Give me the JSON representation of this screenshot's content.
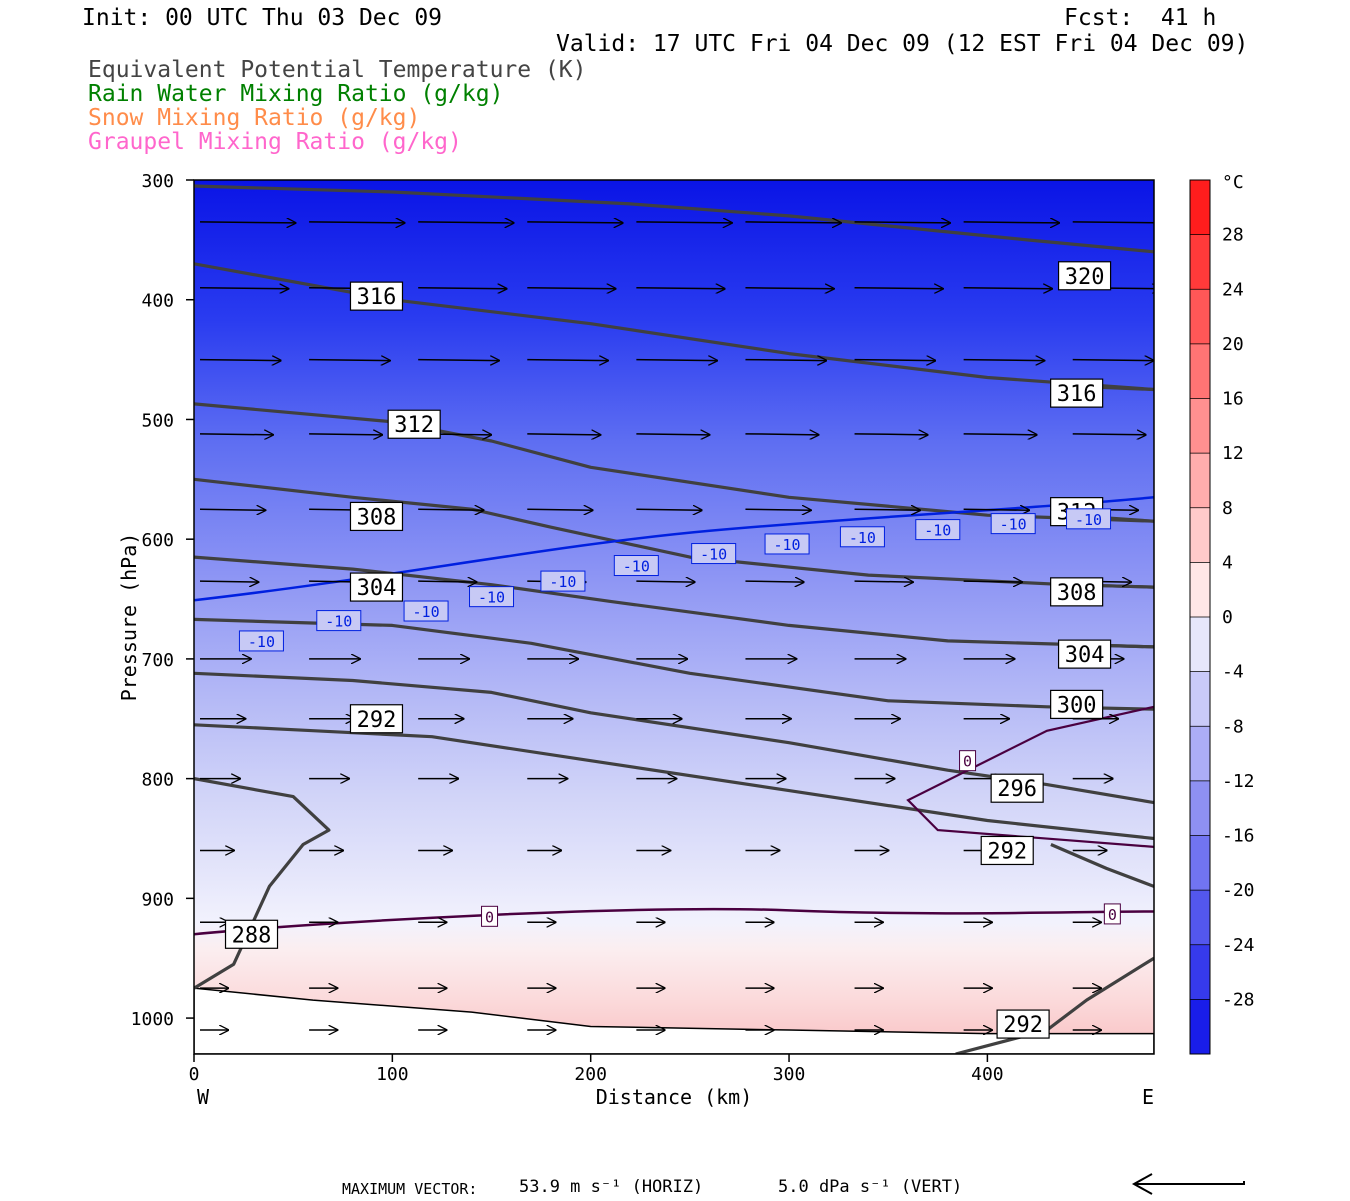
{
  "header": {
    "init": "Init: 00 UTC Thu 03 Dec 09",
    "fcst": "Fcst:  41 h",
    "valid": "Valid: 17 UTC Fri 04 Dec 09 (12 EST Fri 04 Dec 09)"
  },
  "legend": [
    {
      "label": "Equivalent Potential Temperature (K)",
      "color": "#444444"
    },
    {
      "label": "Rain Water Mixing Ratio (g/kg)",
      "color": "#008000"
    },
    {
      "label": "Snow Mixing Ratio (g/kg)",
      "color": "#ff8c4a"
    },
    {
      "label": "Graupel Mixing Ratio (g/kg)",
      "color": "#ff66cc"
    }
  ],
  "footer": {
    "max_vector_label": "MAXIMUM VECTOR:",
    "horiz": "53.9 m s⁻¹ (HORIZ)",
    "vert": "5.0 dPa s⁻¹ (VERT)"
  },
  "chart_data": {
    "type": "cross-section",
    "xlabel": "Distance (km)",
    "ylabel": "Pressure (hPa)",
    "x_range": [
      0,
      484
    ],
    "y_range": [
      1030,
      300
    ],
    "x_ticks": [
      0,
      100,
      200,
      300,
      400
    ],
    "y_ticks": [
      300,
      400,
      500,
      600,
      700,
      800,
      900,
      1000
    ],
    "x_end_labels": {
      "left": "W",
      "right": "E"
    },
    "temperature_colorbar": {
      "unit": "°C",
      "min": -32,
      "max": 32,
      "step": 4,
      "tick_labels": [
        28,
        24,
        20,
        16,
        12,
        8,
        4,
        0,
        -4,
        -8,
        -12,
        -16,
        -20,
        -24,
        -28
      ]
    },
    "theta_e_contours": [
      {
        "value": 288,
        "points": [
          [
            0,
            975
          ],
          [
            20,
            955
          ],
          [
            38,
            890
          ],
          [
            55,
            855
          ],
          [
            68,
            843
          ],
          [
            50,
            815
          ],
          [
            0,
            800
          ]
        ],
        "label_at": [
          29,
          930
        ]
      },
      {
        "value": 292,
        "points": [
          [
            0,
            755
          ],
          [
            60,
            760
          ],
          [
            120,
            765
          ],
          [
            200,
            785
          ],
          [
            300,
            810
          ],
          [
            400,
            835
          ],
          [
            484,
            850
          ]
        ],
        "label_at": [
          92,
          750
        ]
      },
      {
        "value": 292,
        "points": [
          [
            432,
            855
          ],
          [
            460,
            875
          ],
          [
            484,
            890
          ]
        ],
        "label_at": [
          410,
          860
        ]
      },
      {
        "value": 292,
        "points": [
          [
            384,
            1030
          ],
          [
            430,
            1010
          ],
          [
            450,
            985
          ],
          [
            484,
            950
          ]
        ],
        "label_at": [
          418,
          1005
        ]
      },
      {
        "value": 296,
        "points": [
          [
            0,
            712
          ],
          [
            80,
            718
          ],
          [
            150,
            728
          ],
          [
            200,
            745
          ],
          [
            300,
            770
          ],
          [
            380,
            793
          ],
          [
            430,
            805
          ],
          [
            484,
            820
          ]
        ],
        "label_at": [
          415,
          808
        ]
      },
      {
        "value": 300,
        "points": [
          [
            0,
            667
          ],
          [
            100,
            672
          ],
          [
            170,
            687
          ],
          [
            250,
            712
          ],
          [
            350,
            735
          ],
          [
            430,
            740
          ],
          [
            484,
            742
          ]
        ],
        "label_at": [
          445,
          738
        ]
      },
      {
        "value": 304,
        "points": [
          [
            0,
            615
          ],
          [
            80,
            625
          ],
          [
            150,
            638
          ],
          [
            210,
            652
          ],
          [
            300,
            672
          ],
          [
            380,
            685
          ],
          [
            484,
            690
          ]
        ],
        "label_at": [
          92,
          640
        ]
      },
      {
        "value": 304,
        "points": [
          [
            445,
            688
          ],
          [
            484,
            690
          ]
        ],
        "label_at": [
          449,
          696
        ]
      },
      {
        "value": 308,
        "points": [
          [
            0,
            550
          ],
          [
            80,
            565
          ],
          [
            140,
            575
          ],
          [
            180,
            590
          ],
          [
            250,
            615
          ],
          [
            340,
            630
          ],
          [
            440,
            638
          ],
          [
            484,
            640
          ]
        ],
        "label_at": [
          92,
          581
        ]
      },
      {
        "value": 308,
        "points": [
          [
            440,
            638
          ],
          [
            484,
            640
          ]
        ],
        "label_at": [
          445,
          644
        ]
      },
      {
        "value": 312,
        "points": [
          [
            0,
            487
          ],
          [
            100,
            502
          ],
          [
            150,
            518
          ],
          [
            200,
            540
          ],
          [
            300,
            565
          ],
          [
            400,
            580
          ],
          [
            484,
            585
          ]
        ],
        "label_at": [
          111,
          504
        ]
      },
      {
        "value": 312,
        "points": [
          [
            440,
            580
          ],
          [
            484,
            585
          ]
        ],
        "label_at": [
          445,
          577
        ]
      },
      {
        "value": 316,
        "points": [
          [
            0,
            370
          ],
          [
            100,
            400
          ],
          [
            200,
            420
          ],
          [
            300,
            445
          ],
          [
            400,
            465
          ],
          [
            484,
            475
          ]
        ],
        "label_at": [
          92,
          397
        ]
      },
      {
        "value": 316,
        "points": [
          [
            440,
            472
          ],
          [
            484,
            475
          ]
        ],
        "label_at": [
          445,
          478
        ]
      },
      {
        "value": 320,
        "points": [
          [
            0,
            305
          ],
          [
            100,
            310
          ],
          [
            220,
            320
          ],
          [
            300,
            330
          ],
          [
            420,
            350
          ],
          [
            484,
            360
          ]
        ],
        "label_at": [
          449,
          380
        ]
      }
    ],
    "isotherm_labels": [
      {
        "value": -10,
        "at": [
          34,
          685
        ]
      },
      {
        "value": -10,
        "at": [
          73,
          668
        ]
      },
      {
        "value": -10,
        "at": [
          117,
          660
        ]
      },
      {
        "value": -10,
        "at": [
          150,
          648
        ]
      },
      {
        "value": -10,
        "at": [
          186,
          635
        ]
      },
      {
        "value": -10,
        "at": [
          223,
          622
        ]
      },
      {
        "value": -10,
        "at": [
          262,
          612
        ]
      },
      {
        "value": -10,
        "at": [
          299,
          604
        ]
      },
      {
        "value": -10,
        "at": [
          337,
          598
        ]
      },
      {
        "value": -10,
        "at": [
          375,
          592
        ]
      },
      {
        "value": -10,
        "at": [
          413,
          587
        ]
      },
      {
        "value": -10,
        "at": [
          451,
          583
        ]
      },
      {
        "value": 0,
        "at": [
          149,
          915
        ]
      },
      {
        "value": 0,
        "at": [
          463,
          913
        ]
      },
      {
        "value": 0,
        "at": [
          390,
          785
        ]
      }
    ],
    "wind_rows_hpa": [
      335,
      390,
      450,
      512,
      575,
      635,
      700,
      750,
      800,
      860,
      920,
      975,
      1010
    ]
  }
}
